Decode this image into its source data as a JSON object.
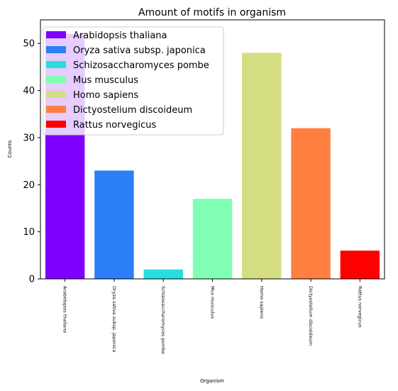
{
  "chart_data": {
    "type": "bar",
    "title": "Amount of motifs in organism",
    "xlabel": "Organism",
    "ylabel": "Counts",
    "ylim": [
      0,
      55
    ],
    "yticks": [
      0,
      10,
      20,
      30,
      40,
      50
    ],
    "grid": false,
    "legend_position": "top-left",
    "categories": [
      "Arabidopsis thaliana",
      "Oryza sativa subsp. japonica",
      "Schizosaccharomyces pombe",
      "Mus musculus",
      "Homo sapiens",
      "Dictyostelium discoideum",
      "Rattus norvegicus"
    ],
    "values": [
      52,
      23,
      2,
      17,
      48,
      32,
      6
    ],
    "colors": [
      "#8000ff",
      "#2c7ef7",
      "#2adddd",
      "#80ffb4",
      "#d4dd80",
      "#ff7f40",
      "#ff0000"
    ]
  }
}
